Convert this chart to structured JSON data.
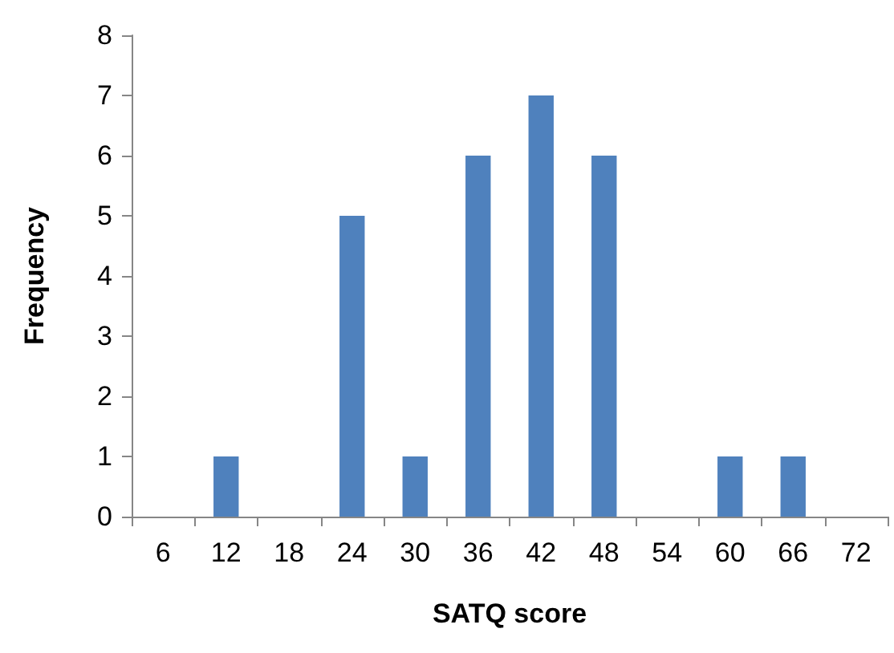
{
  "chart_data": {
    "type": "bar",
    "xlabel": "SATQ score",
    "ylabel": "Frequency",
    "categories": [
      "6",
      "12",
      "18",
      "24",
      "30",
      "36",
      "42",
      "48",
      "54",
      "60",
      "66",
      "72"
    ],
    "values": [
      0,
      1,
      0,
      5,
      1,
      6,
      7,
      6,
      0,
      1,
      1,
      0
    ],
    "color": "#4f81bd",
    "ylim": [
      0,
      8
    ],
    "yticks": [
      0,
      1,
      2,
      3,
      4,
      5,
      6,
      7,
      8
    ],
    "grid": false
  }
}
